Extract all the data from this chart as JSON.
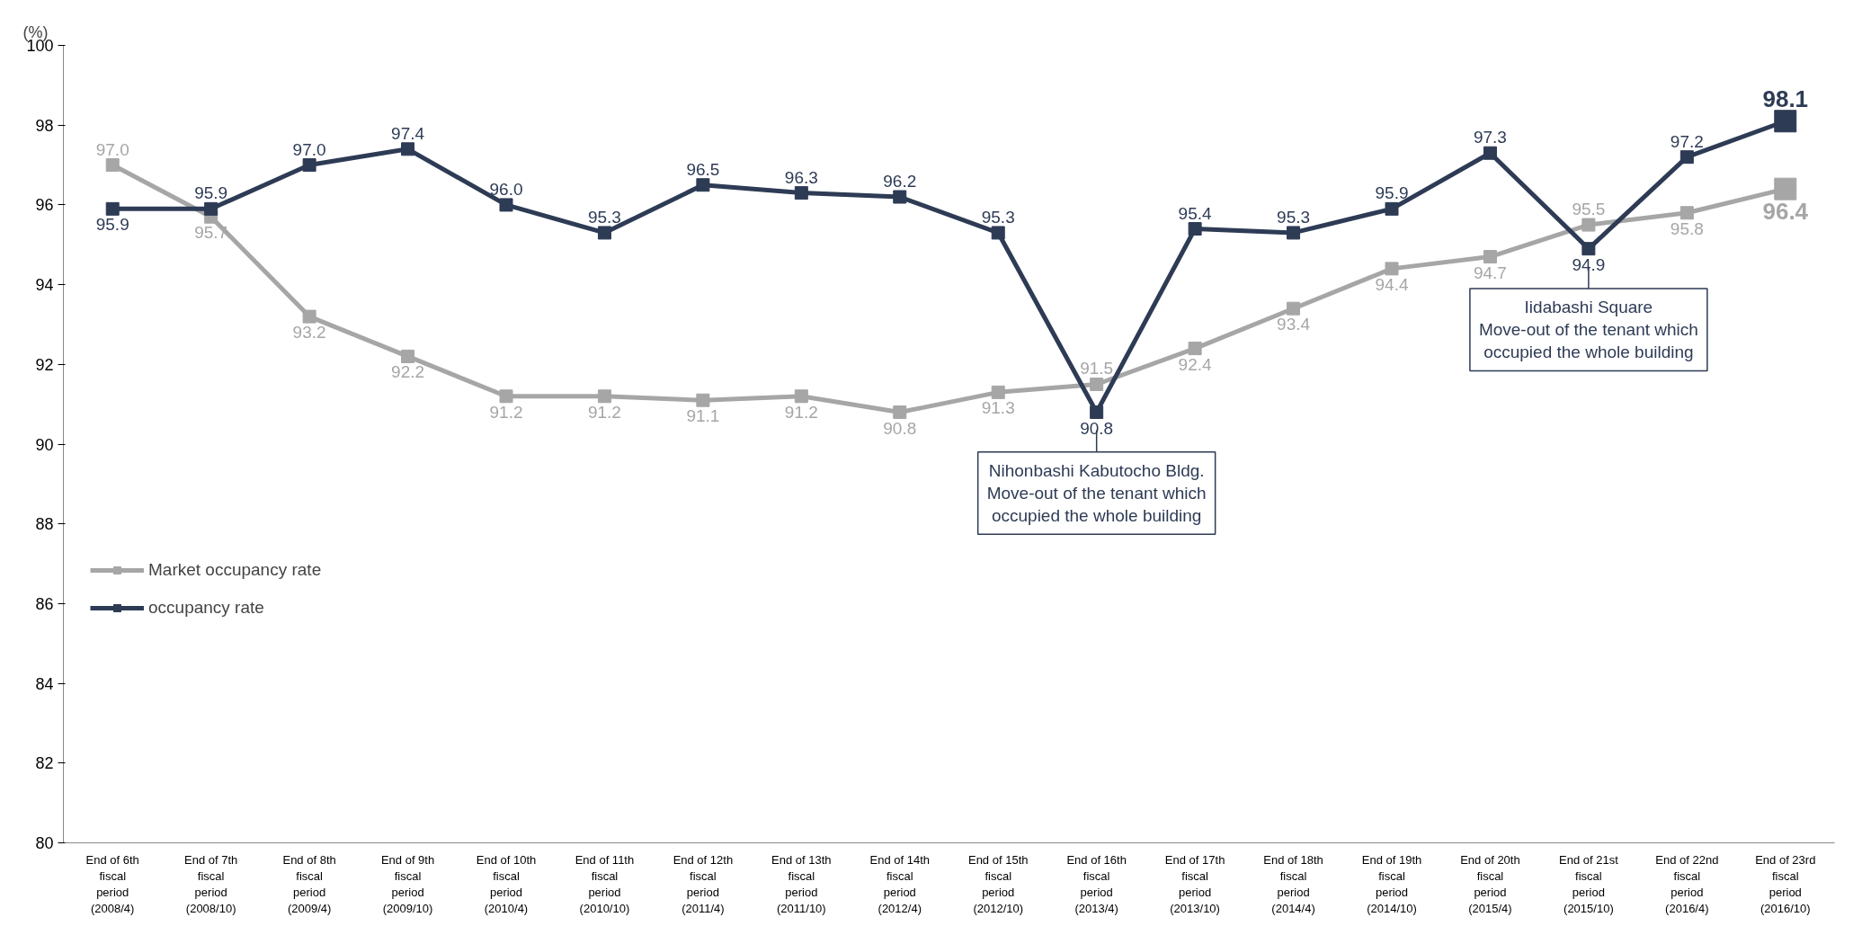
{
  "chart_data": {
    "type": "line",
    "ylabel": "(%)",
    "categories": [
      "End of 6th fiscal period (2008/4)",
      "End of 7th fiscal period (2008/10)",
      "End of 8th fiscal period (2009/4)",
      "End of 9th fiscal period (2009/10)",
      "End of 10th fiscal period (2010/4)",
      "End of 11th fiscal period (2010/10)",
      "End of 12th fiscal period (2011/4)",
      "End of 13th fiscal period (2011/10)",
      "End of 14th fiscal period (2012/4)",
      "End of 15th fiscal period (2012/10)",
      "End of 16th fiscal period (2013/4)",
      "End of 17th fiscal period (2013/10)",
      "End of 18th fiscal period (2014/4)",
      "End of 19th fiscal period (2014/10)",
      "End of 20th fiscal period (2015/4)",
      "End of 21st fiscal period (2015/10)",
      "End of 22nd fiscal period (2016/4)",
      "End of 23rd fiscal period (2016/10)"
    ],
    "series": [
      {
        "name": "Market occupancy rate",
        "color": "#a6a6a6",
        "values": [
          97.0,
          95.7,
          93.2,
          92.2,
          91.2,
          91.2,
          91.1,
          91.2,
          90.8,
          91.3,
          91.5,
          92.4,
          93.4,
          94.4,
          94.7,
          95.5,
          95.8,
          96.4
        ],
        "value_labels": [
          "97.0",
          "95.7",
          "93.2",
          "92.2",
          "91.2",
          "91.2",
          "91.1",
          "91.2",
          "90.8",
          "91.3",
          "91.5",
          "92.4",
          "93.4",
          "94.4",
          "94.7",
          "95.5",
          "95.8",
          "96.4"
        ]
      },
      {
        "name": "occupancy rate",
        "color": "#2e3b55",
        "values": [
          95.9,
          95.9,
          97.0,
          97.4,
          96.0,
          95.3,
          96.5,
          96.3,
          96.2,
          95.3,
          90.8,
          95.4,
          95.3,
          95.9,
          97.3,
          94.9,
          97.2,
          98.1
        ],
        "value_labels": [
          "95.9",
          "95.9",
          "97.0",
          "97.4",
          "96.0",
          "95.3",
          "96.5",
          "96.3",
          "96.2",
          "95.3",
          "90.8",
          "95.4",
          "95.3",
          "95.9",
          "97.3",
          "94.9",
          "97.2",
          "98.1"
        ]
      }
    ],
    "ylim": [
      80,
      100
    ],
    "yticks": [
      80,
      82,
      84,
      86,
      88,
      90,
      92,
      94,
      96,
      98,
      100
    ],
    "grid": false,
    "legend": "left",
    "marker": "square",
    "line_style": "solid",
    "annotations": [
      {
        "text": "Nihonbashi Kabutocho Bldg.\nMove-out of the tenant which\noccupied the whole building",
        "x": "End of 16th fiscal period (2013/4)",
        "y": 90.8
      },
      {
        "text": "Iidabashi Square\nMove-out of the tenant which\noccupied the whole building",
        "x": "End of 21st fiscal period (2015/10)",
        "y": 94.9
      }
    ]
  }
}
